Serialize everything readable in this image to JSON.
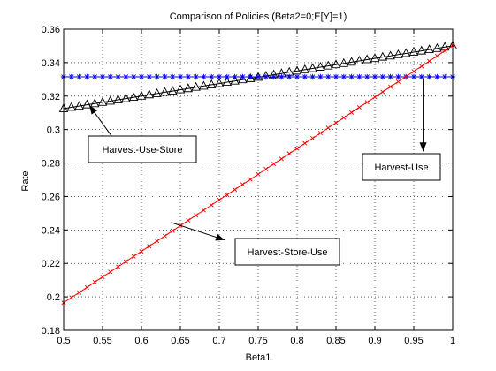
{
  "chart_data": {
    "type": "line",
    "title": "Comparison of Policies (Beta2=0;E[Y]=1)",
    "xlabel": "Beta1",
    "ylabel": "Rate",
    "xlim": [
      0.5,
      1
    ],
    "ylim": [
      0.18,
      0.36
    ],
    "xticks": [
      0.5,
      0.55,
      0.6,
      0.65,
      0.7,
      0.75,
      0.8,
      0.85,
      0.9,
      0.95,
      1
    ],
    "xtick_labels": [
      "0.5",
      "0.55",
      "0.6",
      "0.65",
      "0.7",
      "0.75",
      "0.8",
      "0.85",
      "0.9",
      "0.95",
      "1"
    ],
    "yticks": [
      0.18,
      0.2,
      0.22,
      0.24,
      0.26,
      0.28,
      0.3,
      0.32,
      0.34,
      0.36
    ],
    "ytick_labels": [
      "0.18",
      "0.2",
      "0.22",
      "0.24",
      "0.26",
      "0.28",
      "0.3",
      "0.32",
      "0.34",
      "0.36"
    ],
    "grid": true,
    "x": [
      0.5,
      0.51,
      0.52,
      0.53,
      0.54,
      0.55,
      0.56,
      0.57,
      0.58,
      0.59,
      0.6,
      0.61,
      0.62,
      0.63,
      0.64,
      0.65,
      0.66,
      0.67,
      0.68,
      0.69,
      0.7,
      0.71,
      0.72,
      0.73,
      0.74,
      0.75,
      0.76,
      0.77,
      0.78,
      0.79,
      0.8,
      0.81,
      0.82,
      0.83,
      0.84,
      0.85,
      0.86,
      0.87,
      0.88,
      0.89,
      0.9,
      0.91,
      0.92,
      0.93,
      0.94,
      0.95,
      0.96,
      0.97,
      0.98,
      0.99,
      1.0
    ],
    "series": [
      {
        "color": "#000000",
        "marker": "triangle",
        "values": [
          0.3125,
          0.3133,
          0.314,
          0.3148,
          0.3155,
          0.3163,
          0.317,
          0.3178,
          0.3185,
          0.3193,
          0.32,
          0.3208,
          0.3215,
          0.3223,
          0.323,
          0.3238,
          0.3245,
          0.3253,
          0.326,
          0.3268,
          0.3275,
          0.3283,
          0.329,
          0.3298,
          0.3305,
          0.3313,
          0.332,
          0.3328,
          0.3335,
          0.3343,
          0.335,
          0.3358,
          0.3365,
          0.3373,
          0.338,
          0.3388,
          0.3395,
          0.3403,
          0.341,
          0.3418,
          0.3425,
          0.3433,
          0.344,
          0.3448,
          0.3455,
          0.3463,
          0.347,
          0.3478,
          0.3485,
          0.3493,
          0.35
        ]
      },
      {
        "color": "#0000ff",
        "marker": "asterisk",
        "values": [
          0.3315,
          0.3315,
          0.3315,
          0.3315,
          0.3315,
          0.3315,
          0.3315,
          0.3315,
          0.3315,
          0.3315,
          0.3315,
          0.3315,
          0.3315,
          0.3315,
          0.3315,
          0.3315,
          0.3315,
          0.3315,
          0.3315,
          0.3315,
          0.3315,
          0.3315,
          0.3315,
          0.3315,
          0.3315,
          0.3315,
          0.3315,
          0.3315,
          0.3315,
          0.3315,
          0.3315,
          0.3315,
          0.3315,
          0.3315,
          0.3315,
          0.3315,
          0.3315,
          0.3315,
          0.3315,
          0.3315,
          0.3315,
          0.3315,
          0.3315,
          0.3315,
          0.3315,
          0.3315,
          0.3315,
          0.3315,
          0.3315,
          0.3315,
          0.3315
        ]
      },
      {
        "color": "#ff0000",
        "marker": "x",
        "values": [
          0.1965,
          0.1996,
          0.2026,
          0.2057,
          0.2088,
          0.2119,
          0.2149,
          0.218,
          0.2211,
          0.2242,
          0.2272,
          0.2303,
          0.2334,
          0.2364,
          0.2395,
          0.2426,
          0.2457,
          0.2487,
          0.2518,
          0.2549,
          0.258,
          0.261,
          0.2641,
          0.2672,
          0.2702,
          0.2733,
          0.2764,
          0.2795,
          0.2825,
          0.2856,
          0.2887,
          0.2918,
          0.2948,
          0.2979,
          0.301,
          0.304,
          0.3071,
          0.3102,
          0.3133,
          0.3163,
          0.3194,
          0.3225,
          0.3256,
          0.3286,
          0.3317,
          0.3348,
          0.3378,
          0.3409,
          0.344,
          0.3471,
          0.3502
        ]
      }
    ],
    "annotations": [
      {
        "text": "Harvest-Use-Store",
        "arrow_from": [
          0.575,
          0.2875
        ],
        "arrow_to": [
          0.533,
          0.3145
        ]
      },
      {
        "text": "Harvest-Use",
        "arrow_from": [
          0.962,
          0.3305
        ],
        "arrow_to": [
          0.962,
          0.287
        ]
      },
      {
        "text": "Harvest-Store-Use",
        "arrow_from": [
          0.638,
          0.2445
        ],
        "arrow_to": [
          0.707,
          0.234
        ]
      }
    ]
  }
}
